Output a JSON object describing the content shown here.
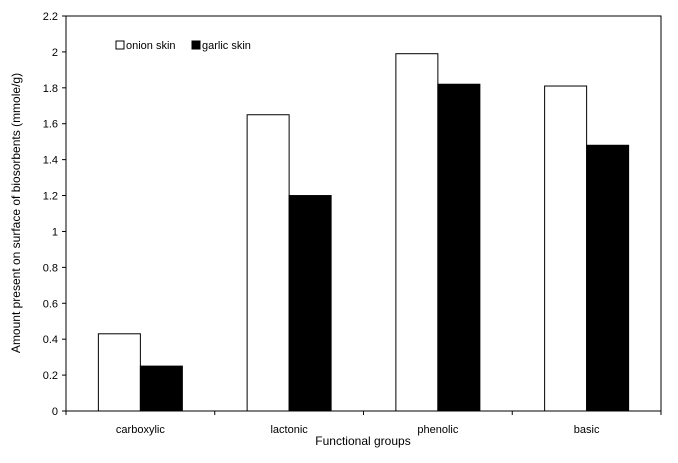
{
  "chart_data": {
    "type": "bar",
    "categories": [
      "carboxylic",
      "lactonic",
      "phenolic",
      "basic"
    ],
    "series": [
      {
        "name": "onion skin",
        "values": [
          0.43,
          1.65,
          1.99,
          1.81
        ],
        "fill": "#ffffff",
        "stroke": "#000000"
      },
      {
        "name": "garlic skin",
        "values": [
          0.25,
          1.2,
          1.82,
          1.48
        ],
        "fill": "#000000",
        "stroke": "#000000"
      }
    ],
    "xlabel": "Functional groups",
    "ylabel": "Amount present on surface of biosorbents (mmole/g)",
    "ylim": [
      0,
      2.2
    ],
    "yticks": [
      "0",
      "0.2",
      "0.4",
      "0.6",
      "0.8",
      "1",
      "1.2",
      "1.4",
      "1.6",
      "1.8",
      "2",
      "2.2"
    ],
    "grid": false,
    "legend_position": "top-left"
  }
}
